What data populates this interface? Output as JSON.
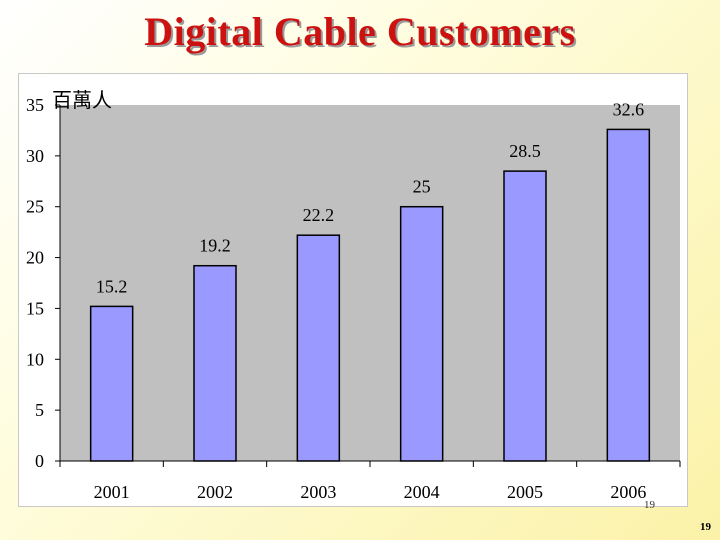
{
  "slide": {
    "title": "Digital Cable Customers",
    "page_number_small": "19",
    "page_number": "19"
  },
  "colors": {
    "title": "#cc1111",
    "bar_fill": "#9999ff",
    "plot_bg": "#c0c0c0"
  },
  "chart_data": {
    "type": "bar",
    "title": "",
    "unit_label": "百萬人",
    "categories": [
      "2001",
      "2002",
      "2003",
      "2004",
      "2005",
      "2006"
    ],
    "values": [
      15.2,
      19.2,
      22.2,
      25,
      28.5,
      32.6
    ],
    "value_labels": [
      "15.2",
      "19.2",
      "22.2",
      "25",
      "28.5",
      "32.6"
    ],
    "ylim": [
      0,
      35
    ],
    "yticks": [
      0,
      5,
      10,
      15,
      20,
      25,
      30,
      35
    ],
    "grid": false,
    "legend": "none"
  }
}
